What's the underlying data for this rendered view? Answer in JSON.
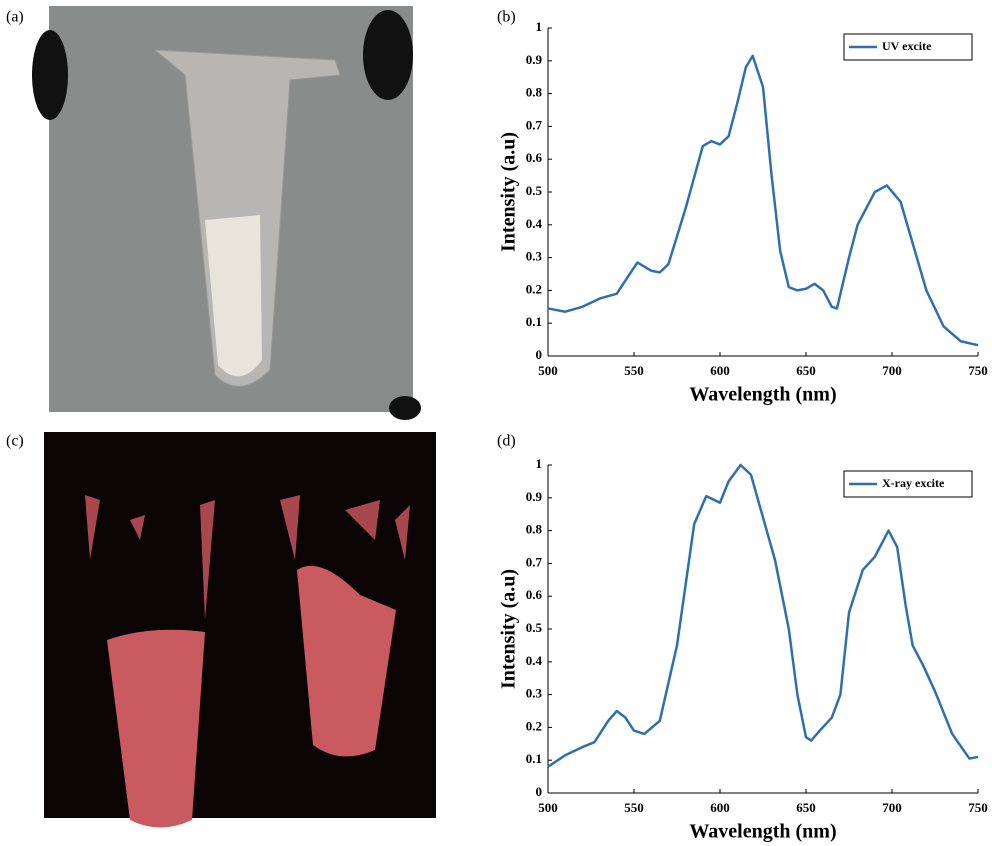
{
  "panel_labels": [
    "(a)",
    "(b)",
    "(c)",
    "(d)"
  ],
  "chart_data": [
    {
      "type": "line",
      "xlabel": "Wavelength (nm)",
      "ylabel": "Intensity (a.u)",
      "x": [
        500,
        510,
        520,
        530,
        540,
        545,
        552,
        560,
        565,
        570,
        580,
        590,
        595,
        600,
        605,
        610,
        615,
        619,
        625,
        630,
        635,
        640,
        645,
        650,
        655,
        660,
        665,
        668,
        675,
        680,
        690,
        697,
        705,
        710,
        720,
        730,
        740,
        750
      ],
      "series": [
        {
          "name": "UV excite",
          "color": "#2f6fae",
          "values": [
            0.145,
            0.135,
            0.15,
            0.175,
            0.19,
            0.23,
            0.285,
            0.26,
            0.255,
            0.28,
            0.45,
            0.64,
            0.655,
            0.645,
            0.67,
            0.77,
            0.88,
            0.915,
            0.82,
            0.55,
            0.32,
            0.21,
            0.2,
            0.205,
            0.22,
            0.2,
            0.15,
            0.145,
            0.3,
            0.4,
            0.5,
            0.52,
            0.47,
            0.38,
            0.2,
            0.09,
            0.045,
            0.033
          ]
        }
      ],
      "xlim": [
        500,
        750
      ],
      "xticks": [
        500,
        550,
        600,
        650,
        700,
        750
      ],
      "ylim": [
        0,
        1
      ],
      "yticks": [
        0,
        0.1,
        0.2,
        0.3,
        0.4,
        0.5,
        0.6,
        0.7,
        0.8,
        0.9,
        1
      ],
      "legend": "upper right",
      "grid": false
    },
    {
      "type": "line",
      "xlabel": "Wavelength (nm)",
      "ylabel": "Intensity (a.u)",
      "x": [
        500,
        510,
        520,
        527,
        535,
        540,
        545,
        550,
        556,
        565,
        575,
        585,
        592,
        596,
        600,
        605,
        612,
        618,
        625,
        632,
        640,
        645,
        650,
        653,
        658,
        665,
        670,
        675,
        683,
        690,
        698,
        703,
        708,
        712,
        718,
        725,
        735,
        745,
        750
      ],
      "series": [
        {
          "name": "X-ray excite",
          "color": "#2f6fae",
          "values": [
            0.08,
            0.115,
            0.14,
            0.155,
            0.22,
            0.25,
            0.23,
            0.19,
            0.18,
            0.22,
            0.45,
            0.82,
            0.905,
            0.895,
            0.885,
            0.95,
            1.0,
            0.97,
            0.84,
            0.71,
            0.5,
            0.3,
            0.17,
            0.16,
            0.19,
            0.23,
            0.3,
            0.55,
            0.68,
            0.72,
            0.8,
            0.75,
            0.57,
            0.45,
            0.39,
            0.31,
            0.18,
            0.105,
            0.11
          ]
        }
      ],
      "xlim": [
        500,
        750
      ],
      "xticks": [
        500,
        550,
        600,
        650,
        700,
        750
      ],
      "ylim": [
        0,
        1
      ],
      "yticks": [
        0,
        0.1,
        0.2,
        0.3,
        0.4,
        0.5,
        0.6,
        0.7,
        0.8,
        0.9,
        1
      ],
      "legend": "upper right",
      "grid": false
    }
  ]
}
